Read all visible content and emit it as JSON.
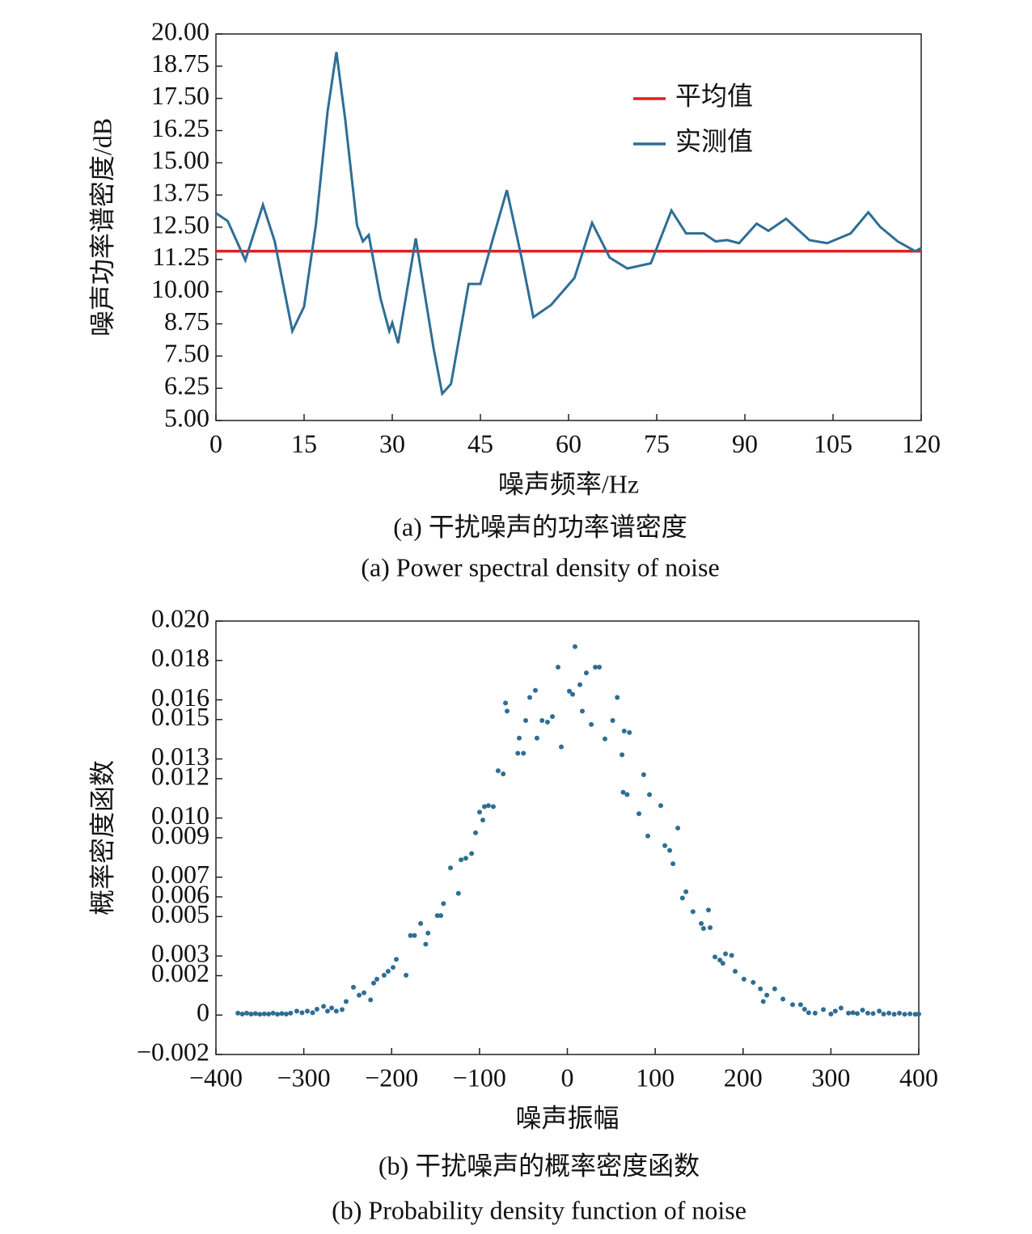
{
  "chart_data": [
    {
      "type": "line",
      "xlabel": "噪声频率/Hz",
      "ylabel": "噪声功率谱密度/dB",
      "caption": "(a) 干扰噪声的功率谱密度",
      "caption_en": "(a) Power spectral density of noise",
      "xlim": [
        0,
        120
      ],
      "xticks": [
        0,
        15,
        30,
        45,
        60,
        75,
        90,
        105,
        120
      ],
      "ylim": [
        5,
        20
      ],
      "yticks": [
        {
          "value": 5,
          "label": "5.00"
        },
        {
          "value": 6.25,
          "label": "6.25"
        },
        {
          "value": 7.5,
          "label": "7.50"
        },
        {
          "value": 8.75,
          "label": "8.75"
        },
        {
          "value": 10,
          "label": "10.00"
        },
        {
          "value": 11.25,
          "label": "11.25"
        },
        {
          "value": 12.5,
          "label": "12.50"
        },
        {
          "value": 13.75,
          "label": "13.75"
        },
        {
          "value": 15,
          "label": "15.00"
        },
        {
          "value": 16.25,
          "label": "16.25"
        },
        {
          "value": 17.5,
          "label": "17.50"
        },
        {
          "value": 18.75,
          "label": "18.75"
        },
        {
          "value": 20,
          "label": "20.00"
        }
      ],
      "legend": "upper right",
      "series": [
        {
          "name": "平均值",
          "color": "#e0201e",
          "x": [
            0,
            120
          ],
          "values": [
            11.57,
            11.57
          ]
        },
        {
          "name": "实测值",
          "color": "#2e6e95",
          "x": [
            0,
            2,
            5,
            8,
            10,
            13,
            15,
            17,
            19,
            20.5,
            22,
            24,
            25,
            26,
            28,
            29.5,
            30,
            31,
            34,
            37,
            38.5,
            40,
            43,
            45,
            47,
            49.5,
            52,
            54,
            57,
            61,
            64,
            67,
            70,
            74,
            77.5,
            80,
            83,
            85,
            87,
            89,
            92,
            94,
            97,
            101,
            104,
            108,
            111,
            113,
            116,
            119,
            120
          ],
          "values": [
            13.05,
            12.74,
            11.22,
            13.37,
            11.95,
            8.47,
            9.42,
            12.58,
            17.0,
            19.3,
            16.68,
            12.58,
            11.95,
            12.2,
            9.74,
            8.47,
            8.79,
            8.0,
            12.07,
            7.84,
            6.04,
            6.42,
            10.3,
            10.3,
            11.95,
            13.94,
            11.32,
            9.01,
            9.48,
            10.53,
            12.67,
            11.32,
            10.9,
            11.1,
            13.15,
            12.26,
            12.26,
            11.95,
            12.0,
            11.88,
            12.64,
            12.36,
            12.83,
            12.0,
            11.88,
            12.26,
            13.08,
            12.52,
            11.95,
            11.57,
            11.69
          ]
        }
      ]
    },
    {
      "type": "scatter",
      "xlabel": "噪声振幅",
      "ylabel": "概率密度函数",
      "caption": "(b) 干扰噪声的概率密度函数",
      "caption_en": "(b) Probability density function of noise",
      "xlim": [
        -400,
        400
      ],
      "xticks": [
        {
          "value": -400,
          "label": "−400"
        },
        {
          "value": -300,
          "label": "−300"
        },
        {
          "value": -200,
          "label": "−200"
        },
        {
          "value": -100,
          "label": "−100"
        },
        0,
        100,
        200,
        300,
        400
      ],
      "ylim": [
        -0.002,
        0.02
      ],
      "yticks": [
        {
          "value": -0.002,
          "label": "−0.002"
        },
        0,
        0.002,
        0.003,
        0.005,
        0.006,
        0.007,
        0.009,
        {
          "value": 0.01,
          "label": "0.010"
        },
        0.012,
        0.013,
        0.015,
        0.016,
        0.018,
        {
          "value": 0.02,
          "label": "0.020"
        }
      ],
      "color": "#2e6e95",
      "x": [
        8.7,
        -10.6,
        -36.4,
        31.8,
        36.4,
        21.6,
        14.3,
        2.3,
        6,
        -42.8,
        -70.4,
        -68.6,
        56.8,
        -17,
        -28.8,
        -47.4,
        17,
        -22.6,
        27.2,
        -54.8,
        42.8,
        -34.6,
        51.6,
        70.6,
        64.7,
        -50,
        -56.4,
        -6.9,
        62.2,
        -78.8,
        -73,
        86.9,
        63.5,
        68,
        106.3,
        93.5,
        -89.8,
        -84.3,
        -94.4,
        -99.9,
        -96.2,
        81.5,
        125.7,
        91.6,
        -104.5,
        111,
        116.5,
        -109,
        -115.6,
        -121,
        120.2,
        -133,
        -124,
        135,
        131,
        -141,
        -148,
        -144,
        143,
        160.6,
        152.4,
        162.5,
        -167,
        -158.6,
        -174,
        -178.6,
        -161.2,
        155,
        168,
        173.6,
        180,
        187,
        177,
        -194.7,
        -198.4,
        -183.6,
        -208.6,
        -204,
        -216.8,
        -220.5,
        191,
        201,
        211.5,
        -243.5,
        -237,
        -231.5,
        -224,
        -251.8,
        -256.4,
        219.7,
        227,
        236,
        223,
        245.4,
        256.4,
        265.5,
        274.7,
        311.5,
        291.4,
        -277.5,
        -268.3,
        -308,
        -375,
        -370,
        -365,
        -360,
        -355,
        -350,
        -345,
        -340,
        -335,
        -330,
        -325,
        -320,
        -315,
        -302,
        -296,
        -290,
        -285,
        -273,
        -263,
        270,
        282,
        300,
        305,
        320,
        325,
        330,
        336,
        342,
        348,
        355,
        360,
        366,
        372,
        378,
        384,
        390,
        396,
        400
      ],
      "values": [
        0.0187,
        0.01766,
        0.01648,
        0.01766,
        0.01766,
        0.01737,
        0.01677,
        0.01644,
        0.01628,
        0.01612,
        0.01584,
        0.01543,
        0.01612,
        0.01515,
        0.01495,
        0.01495,
        0.01543,
        0.01487,
        0.01475,
        0.01406,
        0.01402,
        0.01406,
        0.01495,
        0.01434,
        0.01442,
        0.01329,
        0.01329,
        0.01361,
        0.01321,
        0.0124,
        0.01224,
        0.0122,
        0.01131,
        0.01119,
        0.01063,
        0.01119,
        0.01063,
        0.01058,
        0.01058,
        0.0103,
        0.0099,
        0.01022,
        0.00949,
        0.00909,
        0.00925,
        0.0086,
        0.00836,
        0.0082,
        0.00796,
        0.00788,
        0.00768,
        0.00747,
        0.00618,
        0.00626,
        0.00594,
        0.00566,
        0.00505,
        0.00505,
        0.00525,
        0.00533,
        0.00465,
        0.00444,
        0.00465,
        0.00416,
        0.00404,
        0.00404,
        0.0036,
        0.0044,
        0.00295,
        0.00279,
        0.00311,
        0.00303,
        0.00263,
        0.00283,
        0.00242,
        0.00202,
        0.00202,
        0.00222,
        0.00182,
        0.00162,
        0.00222,
        0.00182,
        0.00166,
        0.00141,
        0.00101,
        0.00113,
        0.00077,
        0.00069,
        0.00028,
        0.00133,
        0.00101,
        0.00133,
        0.00069,
        0.00081,
        0.00053,
        0.00053,
        0.00012,
        0.00036,
        0.00028,
        0.00044,
        0.00036,
        0.0002,
        0.0001,
        5e-05,
        0.0001,
        5e-05,
        8e-05,
        4e-05,
        6e-05,
        5e-05,
        0.0001,
        4e-05,
        8e-05,
        5e-05,
        0.0001,
        0.00012,
        0.0002,
        0.00012,
        0.0003,
        0.0002,
        0.0002,
        0.0003,
        0.0001,
        5e-05,
        0.0002,
        0.0001,
        0.00012,
        8e-05,
        0.00025,
        0.0001,
        8e-05,
        0.0002,
        5e-05,
        0.0001,
        4e-05,
        0.0001,
        4e-05,
        6e-05,
        4e-05,
        5e-05
      ]
    }
  ]
}
